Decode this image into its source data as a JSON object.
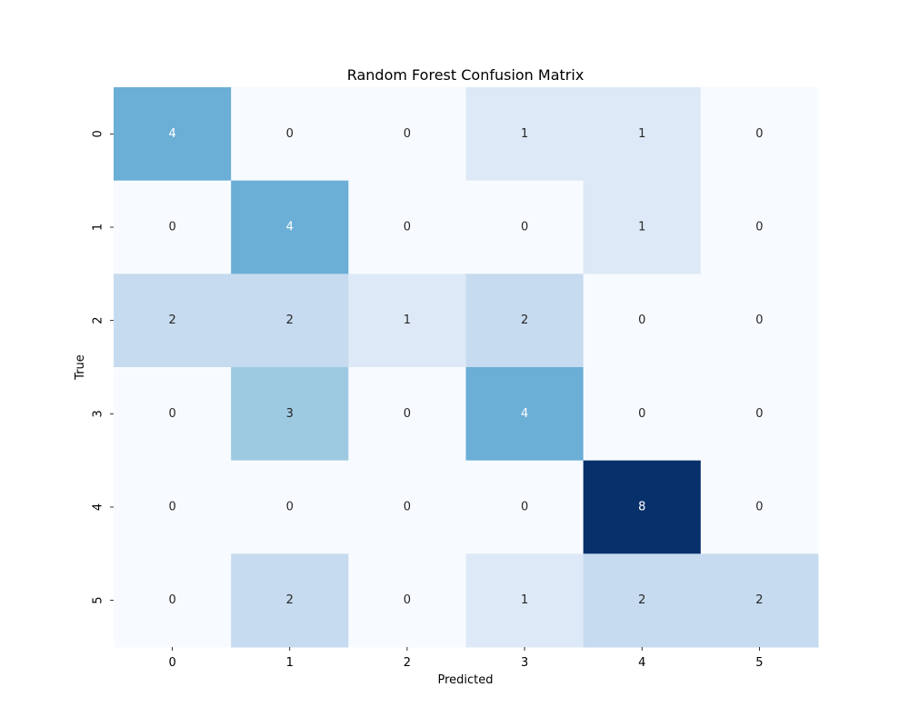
{
  "chart_data": {
    "type": "heatmap",
    "title": "Random Forest Confusion Matrix",
    "xlabel": "Predicted",
    "ylabel": "True",
    "x_categories": [
      "0",
      "1",
      "2",
      "3",
      "4",
      "5"
    ],
    "y_categories": [
      "0",
      "1",
      "2",
      "3",
      "4",
      "5"
    ],
    "values": [
      [
        4,
        0,
        0,
        1,
        1,
        0
      ],
      [
        0,
        4,
        0,
        0,
        1,
        0
      ],
      [
        2,
        2,
        1,
        2,
        0,
        0
      ],
      [
        0,
        3,
        0,
        4,
        0,
        0
      ],
      [
        0,
        0,
        0,
        0,
        8,
        0
      ],
      [
        0,
        2,
        0,
        1,
        2,
        2
      ]
    ],
    "colormap": "Blues",
    "value_range": [
      0,
      8
    ],
    "colorbar": false,
    "annotations": true,
    "cell_colors": {
      "0": "#f7fbff",
      "1": "#dde9f6",
      "2": "#c6dbef",
      "3": "#9ecae1",
      "4": "#6baed6",
      "8": "#08306b"
    },
    "text_colors": {
      "light_background": "#262626",
      "dark_background": "#ffffff"
    }
  }
}
